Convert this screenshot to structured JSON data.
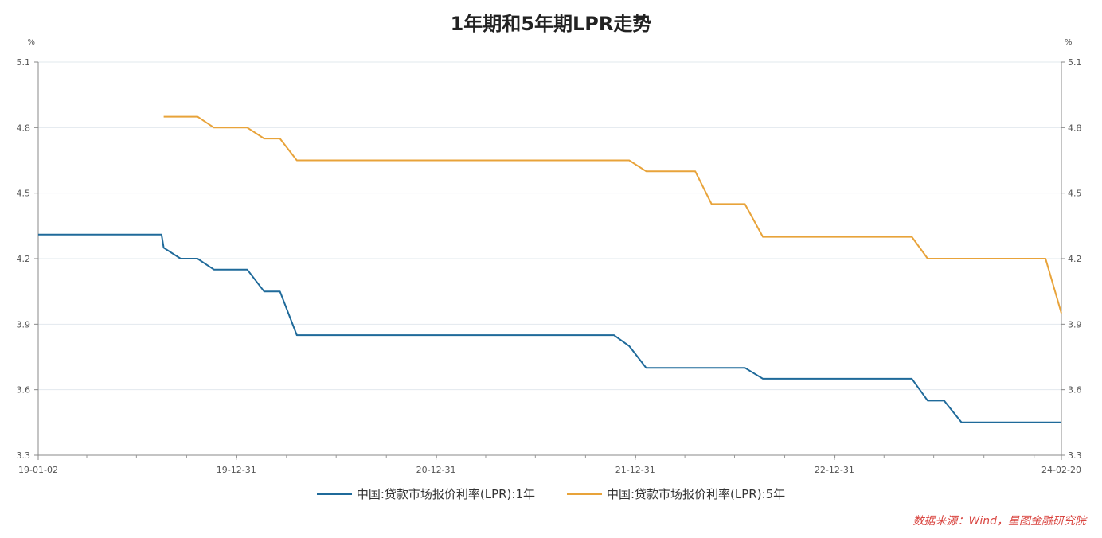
{
  "chart_data": {
    "type": "line",
    "title": "1年期和5年期LPR走势",
    "left_unit": "%",
    "right_unit": "%",
    "ylim": [
      3.3,
      5.1
    ],
    "y_ticks": [
      "3.3",
      "3.6",
      "3.9",
      "4.2",
      "4.5",
      "4.8",
      "5.1"
    ],
    "x_range": [
      "2019-01-02",
      "2024-02-20"
    ],
    "x_ticks": [
      {
        "date": "2019-01-02",
        "label": "19-01-02"
      },
      {
        "date": "2019-12-31",
        "label": "19-12-31"
      },
      {
        "date": "2020-12-31",
        "label": "20-12-31"
      },
      {
        "date": "2021-12-31",
        "label": "21-12-31"
      },
      {
        "date": "2022-12-31",
        "label": "22-12-31"
      },
      {
        "date": "2024-02-20",
        "label": "24-02-20"
      }
    ],
    "grid": true,
    "legend_position": "bottom",
    "series": [
      {
        "name": "中国:贷款市场报价利率(LPR):1年",
        "color": "#1f6a9a",
        "points": [
          [
            "2019-01-02",
            4.31
          ],
          [
            "2019-08-16",
            4.31
          ],
          [
            "2019-08-20",
            4.25
          ],
          [
            "2019-09-20",
            4.2
          ],
          [
            "2019-10-21",
            4.2
          ],
          [
            "2019-11-20",
            4.15
          ],
          [
            "2020-01-20",
            4.15
          ],
          [
            "2020-02-20",
            4.05
          ],
          [
            "2020-03-20",
            4.05
          ],
          [
            "2020-04-20",
            3.85
          ],
          [
            "2021-11-22",
            3.85
          ],
          [
            "2021-12-20",
            3.8
          ],
          [
            "2022-01-20",
            3.7
          ],
          [
            "2022-07-20",
            3.7
          ],
          [
            "2022-08-22",
            3.65
          ],
          [
            "2023-05-22",
            3.65
          ],
          [
            "2023-06-20",
            3.55
          ],
          [
            "2023-07-20",
            3.55
          ],
          [
            "2023-08-21",
            3.45
          ],
          [
            "2024-02-20",
            3.45
          ]
        ]
      },
      {
        "name": "中国:贷款市场报价利率(LPR):5年",
        "color": "#e8a33a",
        "points": [
          [
            "2019-08-20",
            4.85
          ],
          [
            "2019-10-21",
            4.85
          ],
          [
            "2019-11-20",
            4.8
          ],
          [
            "2020-01-20",
            4.8
          ],
          [
            "2020-02-20",
            4.75
          ],
          [
            "2020-03-20",
            4.75
          ],
          [
            "2020-04-20",
            4.65
          ],
          [
            "2021-12-20",
            4.65
          ],
          [
            "2022-01-20",
            4.6
          ],
          [
            "2022-04-20",
            4.6
          ],
          [
            "2022-05-20",
            4.45
          ],
          [
            "2022-07-20",
            4.45
          ],
          [
            "2022-08-22",
            4.3
          ],
          [
            "2023-05-22",
            4.3
          ],
          [
            "2023-06-20",
            4.2
          ],
          [
            "2024-01-22",
            4.2
          ],
          [
            "2024-02-20",
            3.95
          ]
        ]
      }
    ]
  },
  "source": "数据来源：Wind，星图金融研究院"
}
